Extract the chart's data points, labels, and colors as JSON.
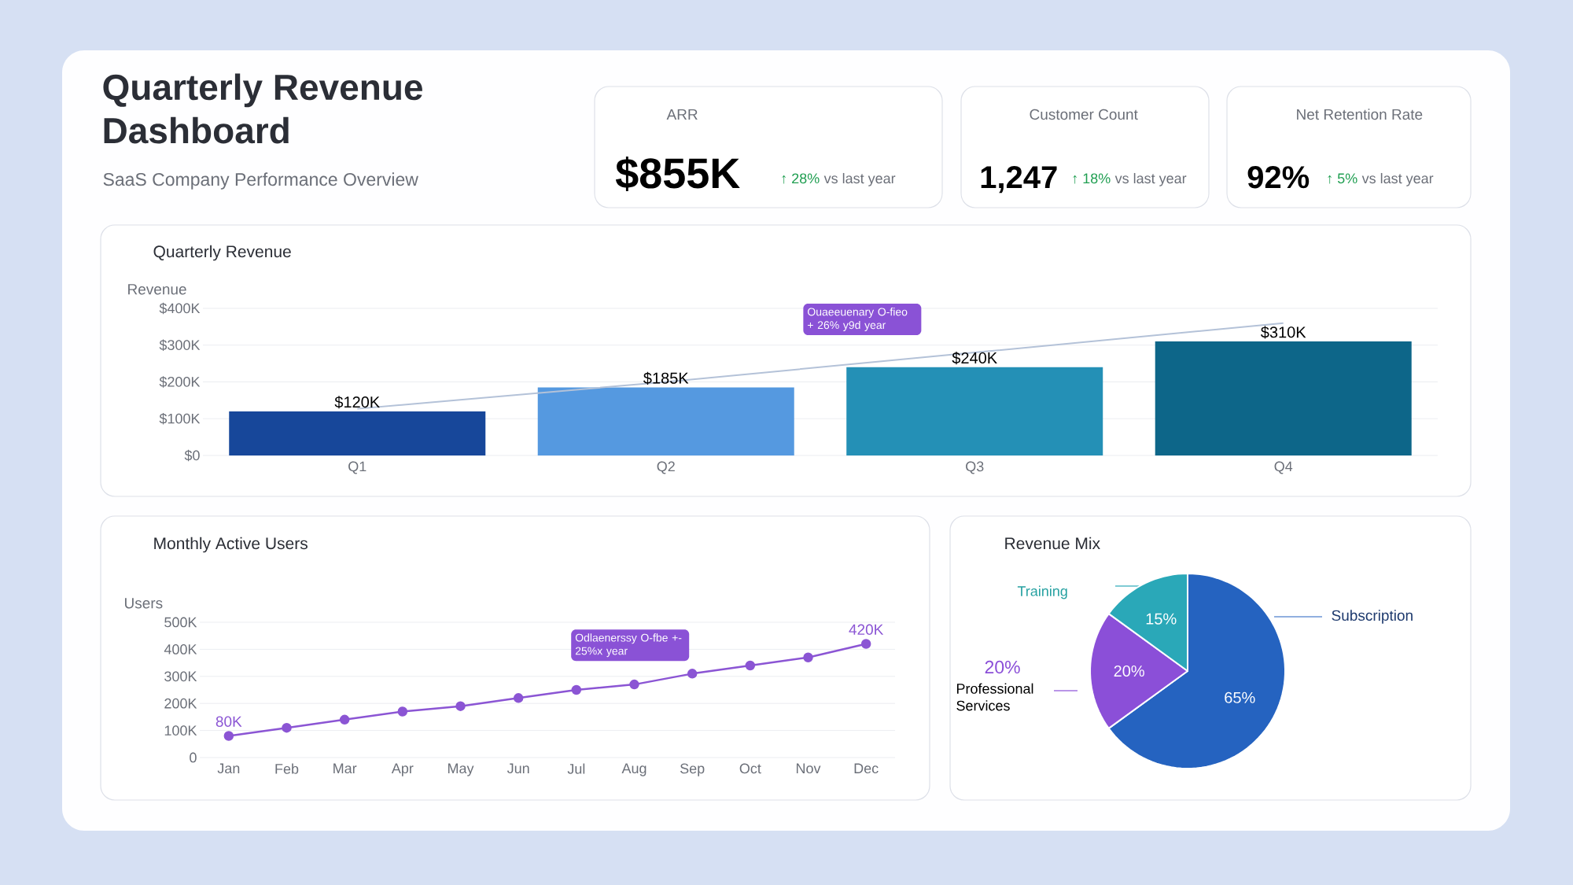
{
  "chart_data": [
    {
      "type": "other",
      "title": "Quarterly Revenue Dashboard",
      "subtitle": "SaaS Company Performance Overview",
      "annotations": [
        "ARR",
        "$855K",
        "↑ 28%",
        "vs last year",
        "Customer Count",
        "1,247",
        "↑ 18%",
        "vs last year",
        "Net Retention Rate",
        "92%",
        "↑ 5%",
        "vs last year"
      ]
    },
    {
      "type": "bar",
      "title": "Quarterly Revenue",
      "ylabel": "Revenue",
      "categories": [
        "Q1",
        "Q2",
        "Q3",
        "Q4"
      ],
      "series": [
        {
          "type": "bar",
          "colors": [
            "#17479a",
            "#5599e0",
            "#2490b6",
            "#0d6689"
          ],
          "values": [
            120000,
            185000,
            240000,
            310000
          ],
          "value_labels": [
            "$120K",
            "$185K",
            "$240K",
            "$310K"
          ]
        },
        {
          "type": "line",
          "color": "#b4c2d8",
          "values": [
            127000,
            200000,
            280000,
            360000
          ]
        }
      ],
      "ylim": [
        0,
        400000
      ],
      "yticks": [
        {
          "value": 0,
          "label": "$0"
        },
        {
          "value": 100000,
          "label": "$100K"
        },
        {
          "value": 200000,
          "label": "$200K"
        },
        {
          "value": 300000,
          "label": "$300K"
        },
        {
          "value": 400000,
          "label": "$400K"
        }
      ],
      "grid": "y",
      "annotations": [
        "Ouaeeuenary O-fieo + 26% y9d year"
      ]
    },
    {
      "type": "line",
      "title": "Monthly Active Users",
      "ylabel": "Users",
      "categories": [
        "Jan",
        "Feb",
        "Mar",
        "Apr",
        "May",
        "Jun",
        "Jul",
        "Aug",
        "Sep",
        "Oct",
        "Nov",
        "Dec"
      ],
      "values": [
        80000,
        110000,
        140000,
        170000,
        190000,
        220000,
        250000,
        270000,
        310000,
        340000,
        370000,
        420000
      ],
      "value_labels": [
        "80K",
        null,
        null,
        null,
        null,
        null,
        null,
        null,
        null,
        null,
        null,
        "420K"
      ],
      "color": "#8b55d4",
      "marker": "circle",
      "ylim": [
        0,
        500000
      ],
      "yticks": [
        0,
        {
          "value": 100000,
          "label": "100K"
        },
        {
          "value": 200000,
          "label": "200K"
        },
        {
          "value": 300000,
          "label": "300K"
        },
        {
          "value": 400000,
          "label": "400K"
        },
        {
          "value": 500000,
          "label": "500K"
        }
      ],
      "grid": "y",
      "annotations": [
        "Odlaenerssy O-fbe +- 25%x year"
      ]
    },
    {
      "type": "pie",
      "title": "Revenue Mix",
      "categories": [
        "Subscription",
        "Professional Services",
        "Training"
      ],
      "values": [
        65,
        20,
        15
      ],
      "colors": [
        "#2563c0",
        "#8b4fd8",
        "#2aa8b8"
      ],
      "value_labels": [
        "65%",
        "20%",
        "15%"
      ],
      "annotations": [
        "20%"
      ]
    }
  ]
}
